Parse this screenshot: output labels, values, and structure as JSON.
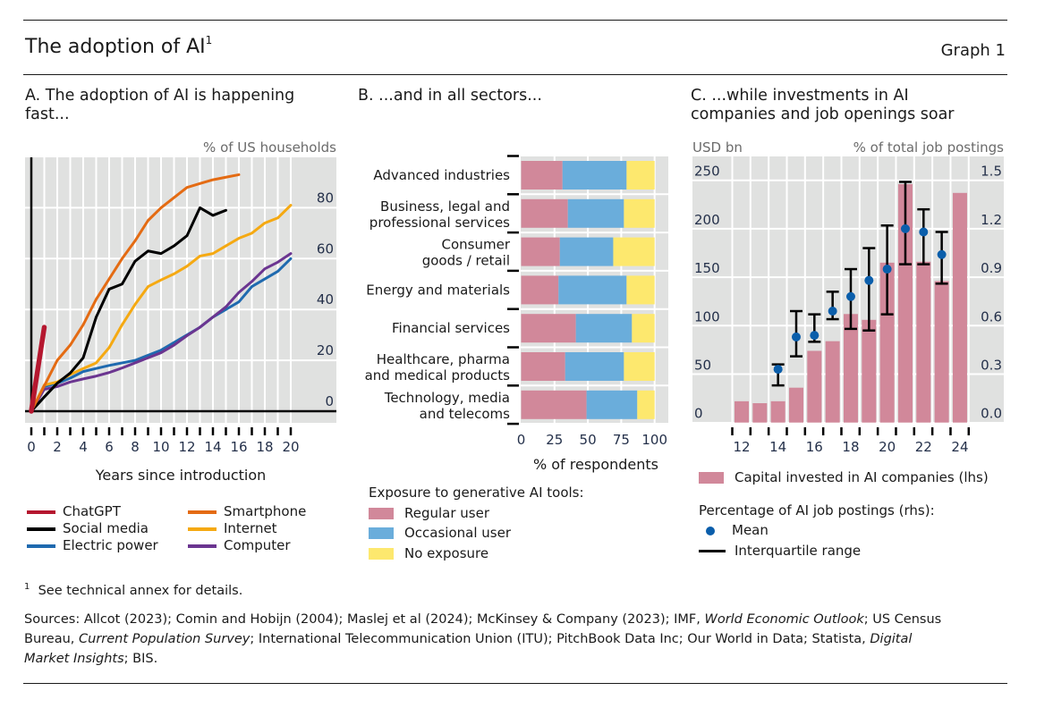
{
  "header": {
    "title": "The adoption of AI",
    "title_footnote": "1",
    "graph_label": "Graph 1"
  },
  "panels": {
    "a": {
      "title_line1": "A. The adoption of AI is happening",
      "title_line2": "fast...",
      "unit": "% of US households",
      "xlabel": "Years since introduction",
      "legend": [
        {
          "name": "ChatGPT",
          "color": "#b5172f"
        },
        {
          "name": "Smartphone",
          "color": "#e46b13"
        },
        {
          "name": "Social media",
          "color": "#000000"
        },
        {
          "name": "Internet",
          "color": "#f5a912"
        },
        {
          "name": "Electric power",
          "color": "#1f6aaf"
        },
        {
          "name": "Computer",
          "color": "#6b3590"
        }
      ]
    },
    "b": {
      "title": "B. ...and in all sectors...",
      "xlabel": "% of respondents",
      "legend_title": "Exposure to generative AI tools:",
      "legend": [
        {
          "name": "Regular user",
          "color": "#d1889a"
        },
        {
          "name": "Occasional user",
          "color": "#6aaddb"
        },
        {
          "name": "No exposure",
          "color": "#fde86e"
        }
      ]
    },
    "c": {
      "title_line1": "C. ...while investments in AI",
      "title_line2": "companies and job openings soar",
      "unit_left": "USD bn",
      "unit_right": "% of total job postings",
      "legend_bar": "Capital invested in AI companies (lhs)",
      "legend_group_title": "Percentage of AI job postings (rhs):",
      "legend_mean": "Mean",
      "legend_iqr": "Interquartile range",
      "bar_color": "#d1889a",
      "mean_color": "#0a5eab"
    }
  },
  "footer": {
    "note_marker": "1",
    "note": "See technical annex for details.",
    "sources_line1_a": "Sources: Allcot (2023); Comin and Hobijn (2004); Maslej et al (2024); McKinsey & Company (2023); IMF, ",
    "sources_line1_i": "World Economic Outlook",
    "sources_line1_b": "; US Census",
    "sources_line2_a": "Bureau, ",
    "sources_line2_i": "Current Population Survey",
    "sources_line2_b": "; International Telecommunication Union (ITU); PitchBook Data Inc; Our World in Data; Statista, ",
    "sources_line2_i2": "Digital",
    "sources_line3_i": "Market Insights",
    "sources_line3_b": "; BIS."
  },
  "chart_data": [
    {
      "id": "a",
      "type": "line",
      "title": "A. The adoption of AI is happening fast...",
      "xlabel": "Years since introduction",
      "ylabel": "% of US households",
      "xlim": [
        0,
        20
      ],
      "ylim": [
        0,
        100
      ],
      "xticks": [
        0,
        2,
        4,
        6,
        8,
        10,
        12,
        14,
        16,
        18,
        20
      ],
      "yticks": [
        0,
        20,
        40,
        60,
        80
      ],
      "grid": true,
      "y_axis_side": "right",
      "series": [
        {
          "name": "ChatGPT",
          "color": "#b5172f",
          "x": [
            0,
            1
          ],
          "values": [
            0,
            33
          ]
        },
        {
          "name": "Smartphone",
          "color": "#e46b13",
          "x": [
            0,
            1,
            2,
            3,
            4,
            5,
            6,
            7,
            8,
            9,
            10,
            11,
            12,
            13,
            14,
            15,
            16
          ],
          "values": [
            0,
            10,
            20,
            26,
            34,
            44,
            52,
            60,
            67,
            75,
            80,
            84,
            88,
            89.5,
            91,
            92,
            93
          ]
        },
        {
          "name": "Social media",
          "color": "#000000",
          "x": [
            0,
            1,
            2,
            3,
            4,
            5,
            6,
            7,
            8,
            9,
            10,
            11,
            12,
            13,
            14,
            15
          ],
          "values": [
            0,
            5.6,
            11,
            15,
            21,
            37,
            48,
            50,
            59,
            63,
            62,
            65,
            69,
            80,
            77,
            79
          ]
        },
        {
          "name": "Internet",
          "color": "#f5a912",
          "x": [
            0,
            1,
            2,
            3,
            4,
            5,
            6,
            7,
            8,
            9,
            10,
            11,
            12,
            13,
            14,
            15,
            16,
            17,
            18,
            19,
            20
          ],
          "values": [
            0,
            10.3,
            11.5,
            14.4,
            16.8,
            19,
            25,
            34,
            42,
            49,
            51.6,
            54,
            57,
            61,
            62,
            65,
            68,
            70,
            74,
            76,
            81
          ]
        },
        {
          "name": "Electric power",
          "color": "#1f6aaf",
          "x": [
            0,
            1,
            2,
            3,
            4,
            5,
            6,
            7,
            8,
            9,
            10,
            11,
            12,
            13,
            14,
            15,
            16,
            17,
            18,
            19,
            20
          ],
          "values": [
            0,
            9.7,
            11,
            13,
            15.6,
            16.8,
            18,
            19,
            20,
            22,
            24,
            27,
            30,
            33,
            37,
            40,
            43,
            49,
            52,
            55,
            60
          ]
        },
        {
          "name": "Computer",
          "color": "#6b3590",
          "x": [
            0,
            1,
            2,
            3,
            4,
            5,
            6,
            7,
            8,
            9,
            10,
            11,
            12,
            13,
            14,
            15,
            16,
            17,
            18,
            19,
            20
          ],
          "values": [
            0,
            8.6,
            9.7,
            11.5,
            12.7,
            13.8,
            15.2,
            17,
            19,
            21,
            23,
            26,
            29.7,
            33,
            37,
            41,
            46.7,
            51,
            56,
            58.6,
            62
          ]
        }
      ],
      "legend_position": "bottom"
    },
    {
      "id": "b",
      "type": "bar",
      "orientation": "horizontal",
      "stacked": true,
      "title": "B. ...and in all sectors...",
      "xlabel": "% of respondents",
      "xlim": [
        0,
        100
      ],
      "xticks": [
        0,
        25,
        50,
        75,
        100
      ],
      "grid": true,
      "categories": [
        [
          "Advanced industries"
        ],
        [
          "Business, legal and",
          "professional services"
        ],
        [
          "Consumer",
          "goods / retail"
        ],
        [
          "Energy and materials"
        ],
        [
          "Financial services"
        ],
        [
          "Healthcare, pharma",
          "and medical products"
        ],
        [
          "Technology, media",
          "and telecoms"
        ]
      ],
      "series": [
        {
          "name": "Regular user",
          "color": "#d1889a",
          "values": [
            31,
            35,
            29,
            28,
            41,
            33,
            49
          ]
        },
        {
          "name": "Occasional user",
          "color": "#6aaddb",
          "values": [
            48,
            42,
            40,
            51,
            42,
            44,
            38
          ]
        },
        {
          "name": "No exposure",
          "color": "#fde86e",
          "values": [
            21,
            23,
            31,
            21,
            17,
            23,
            13
          ]
        }
      ],
      "legend_title": "Exposure to generative AI tools:",
      "legend_position": "bottom"
    },
    {
      "id": "c",
      "type": "bar",
      "title": "C. ...while investments in AI companies and job openings soar",
      "xlabel": "",
      "ylabel_left": "USD bn",
      "ylabel_right": "% of total job postings",
      "x": [
        2012,
        2013,
        2014,
        2015,
        2016,
        2017,
        2018,
        2019,
        2020,
        2021,
        2022,
        2023,
        2024
      ],
      "xticks": [
        "12",
        "14",
        "16",
        "18",
        "20",
        "22",
        "24"
      ],
      "ylim_left": [
        0,
        250
      ],
      "yticks_left": [
        0,
        50,
        100,
        150,
        200,
        250
      ],
      "ylim_right": [
        0,
        1.5
      ],
      "yticks_right": [
        "0.0",
        "0.3",
        "0.6",
        "0.9",
        "1.2",
        "1.5"
      ],
      "grid": true,
      "series": [
        {
          "name": "Capital invested in AI companies (lhs)",
          "type": "bar",
          "axis": "left",
          "color": "#d1889a",
          "values": [
            22,
            20,
            22,
            36,
            74,
            84,
            112,
            106,
            165,
            246,
            166,
            146,
            237
          ]
        },
        {
          "name": "Mean",
          "type": "scatter",
          "axis": "right",
          "color": "#0a5eab",
          "x": [
            2014,
            2015,
            2016,
            2017,
            2018,
            2019,
            2020,
            2021,
            2022,
            2023
          ],
          "values": [
            0.33,
            0.53,
            0.54,
            0.69,
            0.78,
            0.88,
            0.95,
            1.2,
            1.18,
            1.04
          ]
        },
        {
          "name": "Interquartile range",
          "type": "errorbar",
          "axis": "right",
          "color": "#000000",
          "x": [
            2014,
            2015,
            2016,
            2017,
            2018,
            2019,
            2020,
            2021,
            2022,
            2023
          ],
          "low": [
            0.23,
            0.41,
            0.5,
            0.64,
            0.58,
            0.57,
            0.67,
            0.98,
            0.98,
            0.86
          ],
          "high": [
            0.36,
            0.69,
            0.67,
            0.81,
            0.95,
            1.08,
            1.22,
            1.49,
            1.32,
            1.18
          ]
        }
      ],
      "legend_position": "bottom"
    }
  ]
}
